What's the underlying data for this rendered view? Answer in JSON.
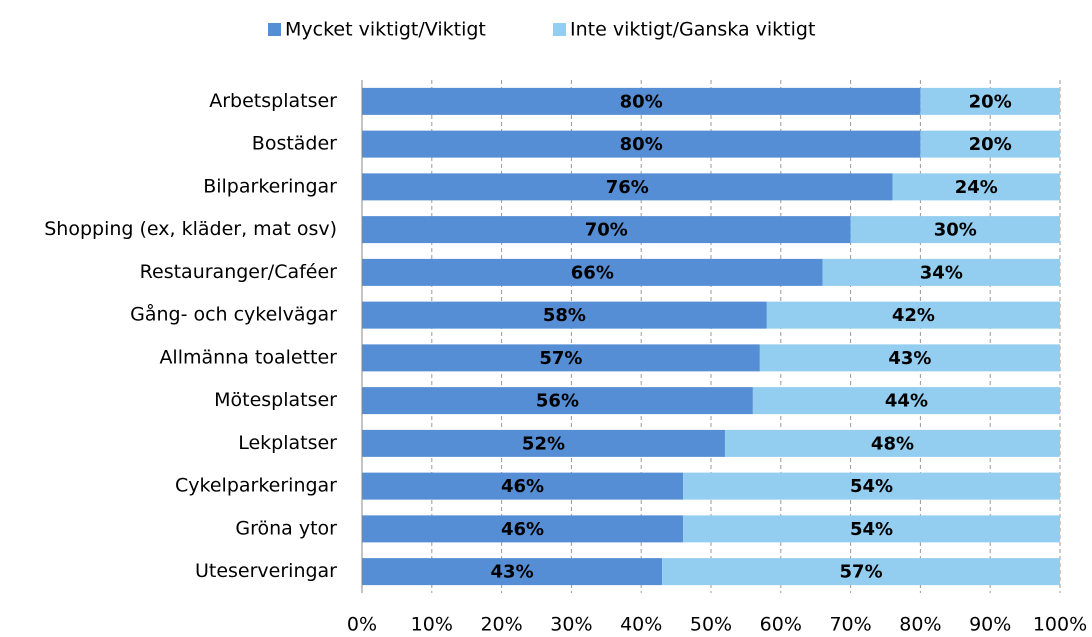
{
  "chart_data": {
    "type": "stacked_barh",
    "categories": [
      "Arbetsplatser",
      "Bostäder",
      "Bilparkeringar",
      "Shopping (ex, kläder, mat osv)",
      "Restauranger/Caféer",
      "Gång- och cykelvägar",
      "Allmänna toaletter",
      "Mötesplatser",
      "Lekplatser",
      "Cykelparkeringar",
      "Gröna ytor",
      "Uteserveringar"
    ],
    "series": [
      {
        "name": "Mycket viktigt/Viktigt",
        "color": "#558ed5",
        "values": [
          80,
          80,
          76,
          70,
          66,
          58,
          57,
          56,
          52,
          46,
          46,
          43
        ],
        "value_labels": [
          "80%",
          "80%",
          "76%",
          "70%",
          "66%",
          "58%",
          "57%",
          "56%",
          "52%",
          "46%",
          "46%",
          "43%"
        ]
      },
      {
        "name": "Inte viktigt/Ganska viktigt",
        "color": "#93cdf0",
        "values": [
          20,
          20,
          24,
          30,
          34,
          42,
          43,
          44,
          48,
          54,
          54,
          57
        ],
        "value_labels": [
          "20%",
          "20%",
          "24%",
          "30%",
          "34%",
          "42%",
          "43%",
          "44%",
          "48%",
          "54%",
          "54%",
          "57%"
        ]
      }
    ],
    "xlim": [
      0,
      100
    ],
    "xticks": [
      {
        "value": 0,
        "label": "0%"
      },
      {
        "value": 10,
        "label": "10%"
      },
      {
        "value": 20,
        "label": "20%"
      },
      {
        "value": 30,
        "label": "30%"
      },
      {
        "value": 40,
        "label": "40%"
      },
      {
        "value": 50,
        "label": "50%"
      },
      {
        "value": 60,
        "label": "60%"
      },
      {
        "value": 70,
        "label": "70%"
      },
      {
        "value": 80,
        "label": "80%"
      },
      {
        "value": 90,
        "label": "90%"
      },
      {
        "value": 100,
        "label": "100%"
      }
    ],
    "grid": true,
    "legend": "top"
  }
}
